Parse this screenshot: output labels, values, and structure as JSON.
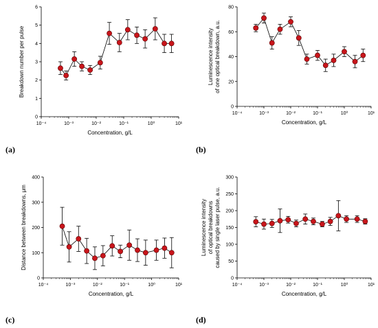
{
  "colors": {
    "marker": "#c8151b",
    "line": "#000000",
    "axis": "#000000"
  },
  "chart_data": [
    {
      "type": "scatter",
      "panel_label": "(a)",
      "xlabel": "Concentration, g/L",
      "ylabel": "Breakdown number per pulse",
      "xscale": "log",
      "xlim": [
        0.0001,
        10
      ],
      "ylim": [
        0,
        6
      ],
      "yticks": [
        0,
        1,
        2,
        3,
        4,
        5,
        6
      ],
      "xtick_labels": [
        "10⁻⁴",
        "10⁻³",
        "10⁻²",
        "10⁻¹",
        "10⁰",
        "10¹"
      ],
      "x": [
        0.0005,
        0.0008,
        0.0016,
        0.003,
        0.006,
        0.014,
        0.03,
        0.07,
        0.14,
        0.3,
        0.6,
        1.4,
        3,
        5.5
      ],
      "y": [
        2.65,
        2.25,
        3.15,
        2.75,
        2.55,
        2.95,
        4.55,
        4.05,
        4.75,
        4.45,
        4.25,
        4.8,
        4.0,
        4.0
      ],
      "err": [
        0.35,
        0.25,
        0.4,
        0.25,
        0.25,
        0.35,
        0.6,
        0.5,
        0.55,
        0.45,
        0.5,
        0.6,
        0.5,
        0.5
      ]
    },
    {
      "type": "scatter",
      "panel_label": "(b)",
      "xlabel": "Concentration, g/L",
      "ylabel": [
        "Luminescence intensity",
        "of one optical breakdown, a.u."
      ],
      "xscale": "log",
      "xlim": [
        0.0001,
        10
      ],
      "ylim": [
        0,
        80
      ],
      "yticks": [
        0,
        20,
        40,
        60,
        80
      ],
      "xtick_labels": [
        "10⁻⁴",
        "10⁻³",
        "10⁻²",
        "10⁻¹",
        "10⁰",
        "10¹"
      ],
      "x": [
        0.0005,
        0.001,
        0.002,
        0.004,
        0.01,
        0.02,
        0.04,
        0.1,
        0.2,
        0.4,
        1,
        2.5,
        5
      ],
      "y": [
        63,
        71,
        51,
        62,
        68,
        55,
        38,
        41,
        33,
        37,
        44,
        36,
        41
      ],
      "err": [
        3,
        4,
        5,
        4,
        4,
        6,
        4,
        4,
        5,
        5,
        4,
        5,
        5
      ]
    },
    {
      "type": "scatter",
      "panel_label": "(c)",
      "xlabel": "Concentration, g/L",
      "ylabel": "Distance between breakdowns, μm",
      "xscale": "log",
      "xlim": [
        0.0001,
        10
      ],
      "ylim": [
        0,
        400
      ],
      "yticks": [
        0,
        100,
        200,
        300,
        400
      ],
      "xtick_labels": [
        "10⁻⁴",
        "10⁻³",
        "10⁻²",
        "10⁻¹",
        "10⁰",
        "10¹"
      ],
      "x": [
        0.0005,
        0.0009,
        0.002,
        0.004,
        0.008,
        0.016,
        0.035,
        0.07,
        0.15,
        0.3,
        0.6,
        1.5,
        3,
        5.5
      ],
      "y": [
        205,
        123,
        155,
        107,
        78,
        88,
        127,
        105,
        130,
        110,
        100,
        110,
        118,
        100
      ],
      "err": [
        75,
        60,
        50,
        50,
        45,
        40,
        40,
        25,
        60,
        45,
        50,
        40,
        40,
        60
      ]
    },
    {
      "type": "scatter",
      "panel_label": "(d)",
      "xlabel": "Concentration, g/L",
      "ylabel": [
        "Luminescence intensity",
        "of optical breakdowns",
        "caused by single laser pulse, a.u."
      ],
      "xscale": "log",
      "xlim": [
        0.0001,
        10
      ],
      "ylim": [
        0,
        300
      ],
      "yticks": [
        0,
        50,
        100,
        150,
        200,
        250,
        300
      ],
      "xtick_labels": [
        "10⁻⁴",
        "10⁻³",
        "10⁻²",
        "10⁻¹",
        "10⁰",
        "10¹"
      ],
      "x": [
        0.0005,
        0.001,
        0.002,
        0.004,
        0.008,
        0.016,
        0.035,
        0.07,
        0.15,
        0.3,
        0.6,
        1.2,
        3,
        6
      ],
      "y": [
        167,
        160,
        162,
        170,
        173,
        162,
        175,
        168,
        160,
        168,
        185,
        175,
        175,
        168
      ],
      "err": [
        15,
        15,
        12,
        35,
        10,
        10,
        15,
        10,
        8,
        12,
        45,
        10,
        10,
        8
      ]
    }
  ]
}
